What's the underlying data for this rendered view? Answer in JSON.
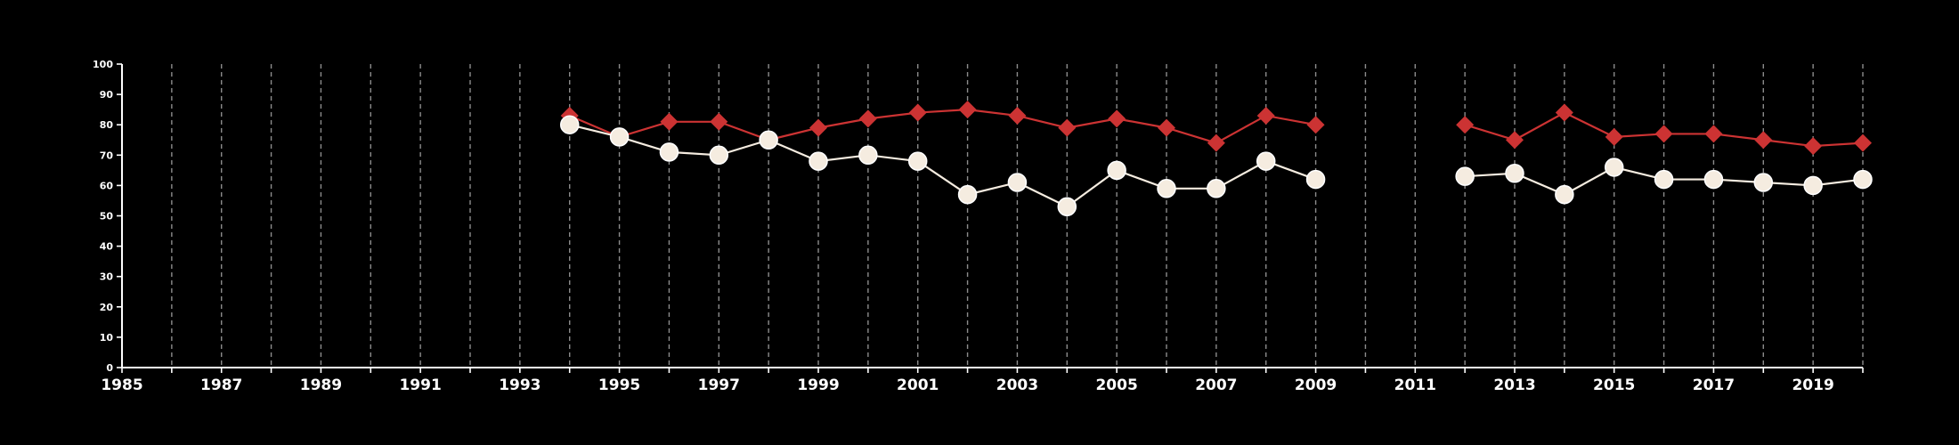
{
  "colors": {
    "background": "#000000",
    "axis": "#ffffff",
    "grid": "#8c8c8c",
    "series_red": "#cc3333",
    "series_cream": "#f5ece0",
    "marker_outline": "#ffffff"
  },
  "chart_data": {
    "type": "line",
    "grid": "vertical dashed lines at every year",
    "legend": "none",
    "xlim": [
      1985,
      2020
    ],
    "ylim": [
      0,
      100
    ],
    "x_ticks": [
      1985,
      1987,
      1989,
      1991,
      1993,
      1995,
      1997,
      1999,
      2001,
      2003,
      2005,
      2007,
      2009,
      2011,
      2013,
      2015,
      2017,
      2019
    ],
    "y_ticks": [
      0,
      10,
      20,
      30,
      40,
      50,
      60,
      70,
      80,
      90,
      100
    ],
    "series": [
      {
        "marker": "diamond",
        "color": "#cc3333",
        "segments": [
          {
            "x": [
              1994,
              1995,
              1996,
              1997,
              1998,
              1999,
              2000,
              2001,
              2002,
              2003,
              2004,
              2005,
              2006,
              2007,
              2008,
              2009
            ],
            "y": [
              83,
              76,
              81,
              81,
              75,
              79,
              82,
              84,
              85,
              83,
              79,
              82,
              79,
              74,
              83,
              80
            ]
          },
          {
            "x": [
              2012,
              2013,
              2014,
              2015,
              2016,
              2017,
              2018,
              2019,
              2020
            ],
            "y": [
              80,
              75,
              84,
              76,
              77,
              77,
              75,
              73,
              74
            ]
          }
        ]
      },
      {
        "marker": "circle",
        "color": "#f5ece0",
        "segments": [
          {
            "x": [
              1994,
              1995,
              1996,
              1997,
              1998,
              1999,
              2000,
              2001,
              2002,
              2003,
              2004,
              2005,
              2006,
              2007,
              2008,
              2009
            ],
            "y": [
              80,
              76,
              71,
              70,
              75,
              68,
              70,
              68,
              57,
              61,
              53,
              65,
              59,
              59,
              68,
              62
            ]
          },
          {
            "x": [
              2012,
              2013,
              2014,
              2015,
              2016,
              2017,
              2018,
              2019,
              2020
            ],
            "y": [
              63,
              64,
              57,
              66,
              62,
              62,
              61,
              60,
              62
            ]
          }
        ]
      }
    ]
  }
}
